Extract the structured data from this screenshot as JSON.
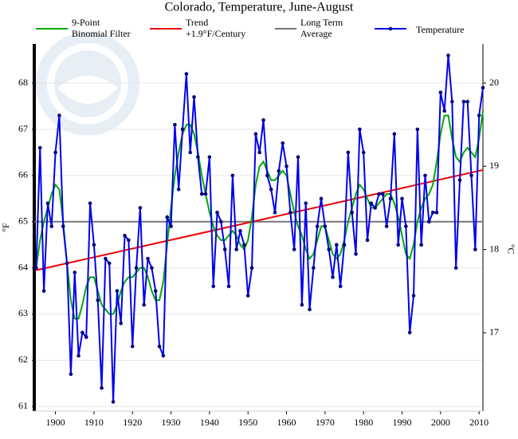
{
  "chart_data": {
    "type": "line",
    "title": "Colorado, Temperature, June-August",
    "ylabel": "°F",
    "y2label": "°C",
    "xlim": [
      1894.5,
      2011
    ],
    "xticks": [
      1900,
      1910,
      1920,
      1930,
      1940,
      1950,
      1960,
      1970,
      1980,
      1990,
      2000,
      2010
    ],
    "ylim": [
      60.9,
      68.85
    ],
    "yticks": [
      61,
      62,
      63,
      64,
      65,
      66,
      67,
      68
    ],
    "y2lim": [
      16.06,
      20.47
    ],
    "y2ticks": [
      17,
      18,
      19,
      20
    ],
    "grid": true,
    "x": [
      1895,
      1896,
      1897,
      1898,
      1899,
      1900,
      1901,
      1902,
      1903,
      1904,
      1905,
      1906,
      1907,
      1908,
      1909,
      1910,
      1911,
      1912,
      1913,
      1914,
      1915,
      1916,
      1917,
      1918,
      1919,
      1920,
      1921,
      1922,
      1923,
      1924,
      1925,
      1926,
      1927,
      1928,
      1929,
      1930,
      1931,
      1932,
      1933,
      1934,
      1935,
      1936,
      1937,
      1938,
      1939,
      1940,
      1941,
      1942,
      1943,
      1944,
      1945,
      1946,
      1947,
      1948,
      1949,
      1950,
      1951,
      1952,
      1953,
      1954,
      1955,
      1956,
      1957,
      1958,
      1959,
      1960,
      1961,
      1962,
      1963,
      1964,
      1965,
      1966,
      1967,
      1968,
      1969,
      1970,
      1971,
      1972,
      1973,
      1974,
      1975,
      1976,
      1977,
      1978,
      1979,
      1980,
      1981,
      1982,
      1983,
      1984,
      1985,
      1986,
      1987,
      1988,
      1989,
      1990,
      1991,
      1992,
      1993,
      1994,
      1995,
      1996,
      1997,
      1998,
      1999,
      2000,
      2001,
      2002,
      2003,
      2004,
      2005,
      2006,
      2007,
      2008,
      2009,
      2010,
      2011
    ],
    "series": [
      {
        "name": [
          "9-Point",
          "Binomial Filter"
        ],
        "color": "#00aa00",
        "values": [
          64.0,
          64.6,
          65.0,
          65.3,
          65.6,
          65.8,
          65.7,
          65.0,
          64.1,
          63.3,
          62.9,
          62.9,
          63.2,
          63.6,
          63.8,
          63.8,
          63.5,
          63.2,
          63.1,
          63.0,
          63.0,
          63.2,
          63.5,
          63.7,
          63.8,
          63.8,
          63.9,
          64.0,
          64.0,
          63.8,
          63.5,
          63.3,
          63.3,
          63.7,
          64.5,
          65.3,
          66.0,
          66.5,
          66.9,
          67.1,
          67.1,
          66.9,
          66.5,
          66.0,
          65.6,
          65.2,
          64.9,
          64.7,
          64.6,
          64.6,
          64.7,
          64.8,
          64.7,
          64.5,
          64.4,
          64.6,
          65.1,
          65.8,
          66.2,
          66.3,
          66.1,
          65.9,
          65.9,
          66.0,
          66.1,
          66.0,
          65.6,
          65.2,
          64.9,
          64.7,
          64.4,
          64.2,
          64.3,
          64.6,
          64.9,
          64.9,
          64.6,
          64.3,
          64.2,
          64.3,
          64.6,
          65.0,
          65.3,
          65.6,
          65.8,
          65.7,
          65.5,
          65.3,
          65.3,
          65.4,
          65.5,
          65.6,
          65.6,
          65.4,
          65.1,
          64.7,
          64.3,
          64.2,
          64.5,
          65.0,
          65.3,
          65.5,
          65.6,
          65.8,
          66.3,
          66.9,
          67.3,
          67.3,
          66.8,
          66.4,
          66.3,
          66.5,
          66.6,
          66.5,
          66.4,
          66.8,
          67.4
        ]
      },
      {
        "name": [
          "Trend",
          "+1.9°F/Century"
        ],
        "color": "#ee0000",
        "x": [
          1895,
          2011
        ],
        "values": [
          63.95,
          66.12
        ]
      },
      {
        "name": [
          "Long Term",
          "Average"
        ],
        "color": "#777777",
        "x": [
          1894.5,
          2011
        ],
        "values": [
          65.0,
          65.0
        ]
      },
      {
        "name": [
          "Temperature"
        ],
        "color": "#0000ee",
        "marker_color": "#000080",
        "values": [
          64.0,
          66.6,
          63.5,
          65.4,
          64.9,
          66.5,
          67.3,
          64.9,
          64.1,
          61.7,
          63.9,
          62.1,
          62.6,
          62.5,
          65.4,
          64.5,
          63.3,
          61.4,
          64.2,
          64.1,
          61.1,
          63.5,
          62.8,
          64.7,
          64.6,
          62.3,
          64.0,
          65.3,
          63.2,
          64.2,
          64.0,
          63.5,
          62.3,
          62.1,
          65.1,
          64.9,
          67.1,
          65.7,
          67.0,
          68.2,
          66.5,
          67.7,
          66.4,
          65.6,
          65.6,
          66.4,
          63.6,
          65.2,
          65.0,
          64.4,
          63.6,
          66.0,
          64.4,
          64.8,
          64.5,
          63.4,
          64.0,
          66.9,
          66.5,
          67.2,
          66.0,
          65.7,
          65.2,
          66.1,
          66.7,
          66.2,
          65.2,
          64.4,
          66.4,
          63.2,
          65.4,
          63.1,
          64.0,
          64.9,
          65.5,
          64.9,
          64.4,
          63.8,
          64.5,
          63.6,
          64.5,
          66.5,
          65.2,
          64.3,
          67.0,
          66.5,
          64.6,
          65.4,
          65.3,
          65.6,
          65.6,
          64.9,
          65.5,
          66.9,
          64.5,
          65.5,
          64.9,
          62.6,
          63.4,
          67.0,
          64.5,
          66.0,
          65.0,
          65.2,
          65.2,
          67.8,
          67.4,
          68.6,
          67.6,
          64.0,
          65.9,
          67.6,
          67.6,
          66.0,
          64.4,
          67.3,
          67.9
        ]
      }
    ]
  }
}
